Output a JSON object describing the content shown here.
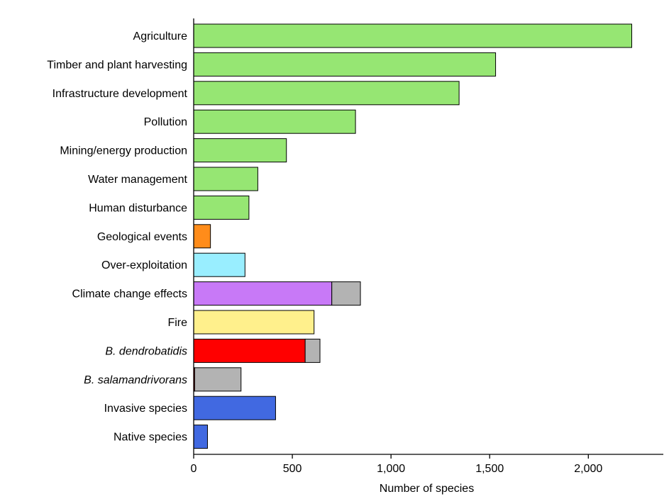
{
  "chart_data": {
    "type": "bar",
    "orientation": "horizontal",
    "stacked": true,
    "xlabel": "Number of species",
    "ylabel": "",
    "xlim": [
      0,
      2380
    ],
    "x_ticks": [
      0,
      500,
      1000,
      1500,
      2000
    ],
    "x_tick_labels": [
      "0",
      "500",
      "1,000",
      "1,500",
      "2,000"
    ],
    "grid": false,
    "legend": "none",
    "categories": [
      {
        "label": "Agriculture",
        "italic": false,
        "segments": [
          {
            "value": 2220,
            "color": "#96e673"
          }
        ]
      },
      {
        "label": "Timber and plant harvesting",
        "italic": false,
        "segments": [
          {
            "value": 1530,
            "color": "#96e673"
          }
        ]
      },
      {
        "label": "Infrastructure development",
        "italic": false,
        "segments": [
          {
            "value": 1345,
            "color": "#96e673"
          }
        ]
      },
      {
        "label": "Pollution",
        "italic": false,
        "segments": [
          {
            "value": 820,
            "color": "#96e673"
          }
        ]
      },
      {
        "label": "Mining/energy production",
        "italic": false,
        "segments": [
          {
            "value": 470,
            "color": "#96e673"
          }
        ]
      },
      {
        "label": "Water management",
        "italic": false,
        "segments": [
          {
            "value": 325,
            "color": "#96e673"
          }
        ]
      },
      {
        "label": "Human disturbance",
        "italic": false,
        "segments": [
          {
            "value": 280,
            "color": "#96e673"
          }
        ]
      },
      {
        "label": "Geological events",
        "italic": false,
        "segments": [
          {
            "value": 85,
            "color": "#ff8c1a"
          }
        ]
      },
      {
        "label": "Over-exploitation",
        "italic": false,
        "segments": [
          {
            "value": 260,
            "color": "#99eeff"
          }
        ]
      },
      {
        "label": "Climate change effects",
        "italic": false,
        "segments": [
          {
            "value": 700,
            "color": "#c879f7"
          },
          {
            "value": 145,
            "color": "#b3b3b3"
          }
        ]
      },
      {
        "label": "Fire",
        "italic": false,
        "segments": [
          {
            "value": 610,
            "color": "#fff08c"
          }
        ]
      },
      {
        "label": "B. dendrobatidis",
        "italic": true,
        "segments": [
          {
            "value": 565,
            "color": "#ff0000"
          },
          {
            "value": 75,
            "color": "#b3b3b3"
          }
        ]
      },
      {
        "label": "B. salamandrivorans",
        "italic": true,
        "segments": [
          {
            "value": 5,
            "color": "#ff0000"
          },
          {
            "value": 235,
            "color": "#b3b3b3"
          }
        ]
      },
      {
        "label": "Invasive species",
        "italic": false,
        "segments": [
          {
            "value": 415,
            "color": "#4169e1"
          }
        ]
      },
      {
        "label": "Native species",
        "italic": false,
        "segments": [
          {
            "value": 70,
            "color": "#4169e1"
          }
        ]
      }
    ]
  }
}
